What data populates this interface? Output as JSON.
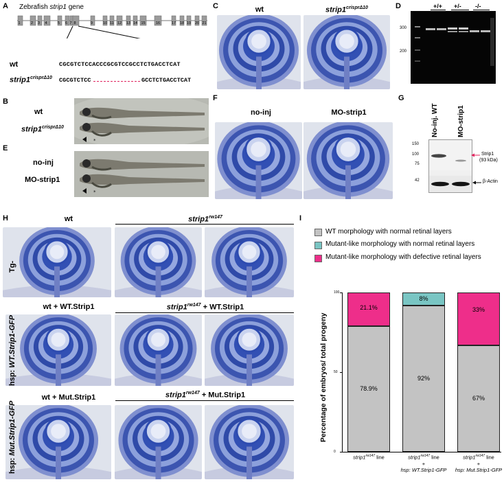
{
  "panel_labels": {
    "A": "A",
    "B": "B",
    "C": "C",
    "D": "D",
    "E": "E",
    "F": "F",
    "G": "G",
    "H": "H",
    "I": "I"
  },
  "panel_a": {
    "title_pre": "Zebrafish ",
    "title_gene": "strip1",
    "title_post": " gene",
    "exon_numbers": [
      "1",
      "2",
      "3",
      "4",
      "5",
      "6",
      "7",
      "8",
      "9",
      "10",
      "11",
      "12",
      "13",
      "14",
      "15",
      "16",
      "17",
      "18",
      "19",
      "20",
      "21"
    ],
    "wt_label": "wt",
    "wt_seq": "CGCGTCTCCACCCGCGTCCGCCTCTGACCTCAT",
    "mut_label_base": "strip1",
    "mut_label_sup": "crisprΔ10",
    "mut_seq_left": "CGCGTCTCC",
    "mut_seq_right": "GCCTCTGACCTCAT"
  },
  "panel_b": {
    "wt_label": "wt",
    "mut_label_base": "strip1",
    "mut_label_sup": "crisprΔ10"
  },
  "panel_c": {
    "wt_label": "wt",
    "mut_label_base": "strip1",
    "mut_label_sup": "crisprΔ10"
  },
  "panel_d": {
    "lanes": [
      "+/+",
      "+/-",
      "-/-"
    ],
    "marker_300": "300",
    "marker_200": "200"
  },
  "panel_e": {
    "noinj_label": "no-inj",
    "mo_label": "MO-strip1"
  },
  "panel_f": {
    "noinj_label": "no-inj",
    "mo_label": "MO-strip1"
  },
  "panel_g": {
    "lane1": "No-inj. WT",
    "lane2": "MO-strip1",
    "m150": "150",
    "m100": "100",
    "m75": "75",
    "m42": "42",
    "strip1_label": "Strip1",
    "strip1_kda": "(93 kDa)",
    "actin_label": "β-Actin"
  },
  "panel_h": {
    "col_wt": "wt",
    "col_mut_base": "strip1",
    "col_mut_sup": "rw147",
    "row_tg": "Tg-",
    "row_wt_label_pre": "hsp: ",
    "row_wt_label": "WT.Strip1-GFP",
    "row_mut_label_pre": "hsp: ",
    "row_mut_label": "Mut.Strip1-GFP",
    "wt_plus_wt": "wt + WT.Strip1",
    "mut_plus_wt_base": "strip1",
    "mut_plus_wt_sup": "rw147",
    "mut_plus_wt_rest": "+ WT.Strip1",
    "wt_plus_mut": "wt + Mut.Strip1",
    "mut_plus_mut_base": "strip1",
    "mut_plus_mut_sup": "rw147",
    "mut_plus_mut_rest": "+ Mut.Strip1"
  },
  "colors": {
    "gray": "#c3c3c3",
    "teal": "#79c5c3",
    "pink": "#ee2e8a"
  },
  "chart_data": {
    "type": "bar",
    "stacked": true,
    "ylabel": "Percentage of embryos/ total progeny",
    "yticks": [
      "0",
      "50",
      "100"
    ],
    "ylim": [
      0,
      100
    ],
    "categories": [
      {
        "line1_base": "strip1",
        "line1_sup": "rw147",
        "line1_rest": " line",
        "line2": "",
        "line3": ""
      },
      {
        "line1_base": "strip1",
        "line1_sup": "rw147",
        "line1_rest": " line",
        "line2": "+",
        "line3": "hsp: WT.Strip1-GFP"
      },
      {
        "line1_base": "strip1",
        "line1_sup": "rw147",
        "line1_rest": " line",
        "line2": "+",
        "line3": "hsp: Mut.Strip1-GFP"
      }
    ],
    "series": [
      {
        "name": "WT morphology with normal retinal layers",
        "color": "#c3c3c3",
        "values": [
          78.9,
          92,
          67
        ],
        "labels": [
          "78.9%",
          "92%",
          "67%"
        ]
      },
      {
        "name": "Mutant-like morphology with normal retinal layers",
        "color": "#79c5c3",
        "values": [
          0,
          8,
          0
        ],
        "labels": [
          "",
          "8%",
          ""
        ]
      },
      {
        "name": "Mutant-like morphology with defective retinal layers",
        "color": "#ee2e8a",
        "values": [
          21.1,
          0,
          33
        ],
        "labels": [
          "21.1%",
          "",
          "33%"
        ]
      }
    ]
  }
}
